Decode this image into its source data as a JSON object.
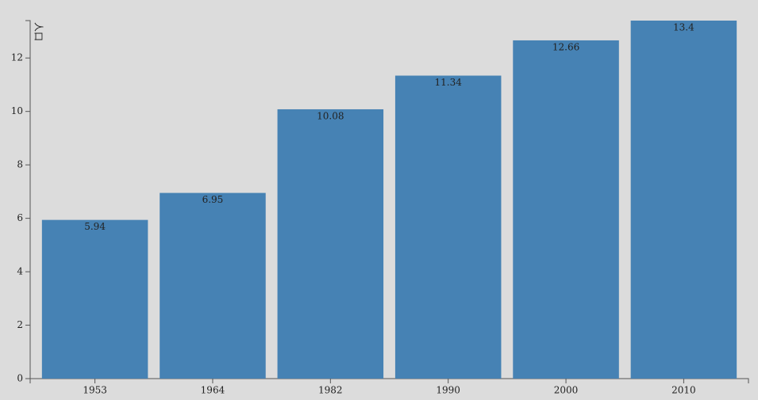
{
  "chart_data": {
    "type": "bar",
    "y_label": "人口",
    "categories": [
      "1953",
      "1964",
      "1982",
      "1990",
      "2000",
      "2010"
    ],
    "values": [
      5.94,
      6.95,
      10.08,
      11.34,
      12.66,
      13.4
    ],
    "color": "#4682b4",
    "ylim": [
      0,
      13.4
    ],
    "yticks": [
      0,
      2,
      4,
      6,
      8,
      10,
      12
    ]
  }
}
